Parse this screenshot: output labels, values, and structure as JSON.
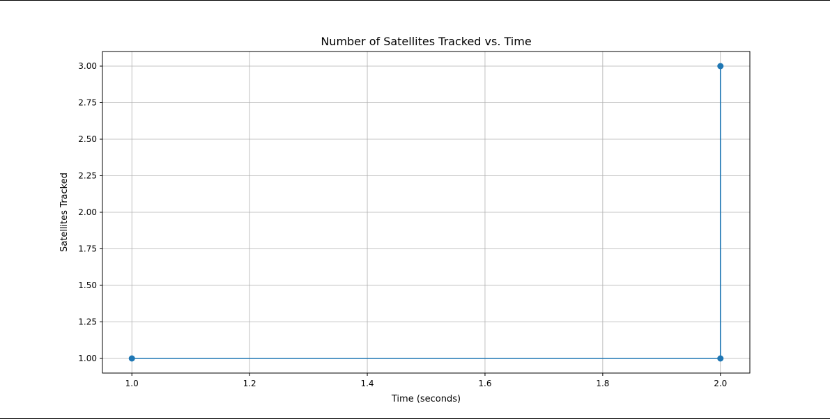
{
  "chart_data": {
    "type": "line",
    "title": "Number of Satellites Tracked vs. Time",
    "xlabel": "Time (seconds)",
    "ylabel": "Satellites Tracked",
    "xlim": [
      0.95,
      2.05
    ],
    "ylim": [
      0.9,
      3.1
    ],
    "x_ticks": [
      1.0,
      1.2,
      1.4,
      1.6,
      1.8,
      2.0
    ],
    "x_tick_labels": [
      "1.0",
      "1.2",
      "1.4",
      "1.6",
      "1.8",
      "2.0"
    ],
    "y_ticks": [
      1.0,
      1.25,
      1.5,
      1.75,
      2.0,
      2.25,
      2.5,
      2.75,
      3.0
    ],
    "y_tick_labels": [
      "1.00",
      "1.25",
      "1.50",
      "1.75",
      "2.00",
      "2.25",
      "2.50",
      "2.75",
      "3.00"
    ],
    "grid": true,
    "marker": "circle",
    "series": [
      {
        "color": "#1f77b4",
        "x": [
          1.0,
          2.0,
          2.0
        ],
        "y": [
          1,
          1,
          3
        ]
      }
    ]
  }
}
